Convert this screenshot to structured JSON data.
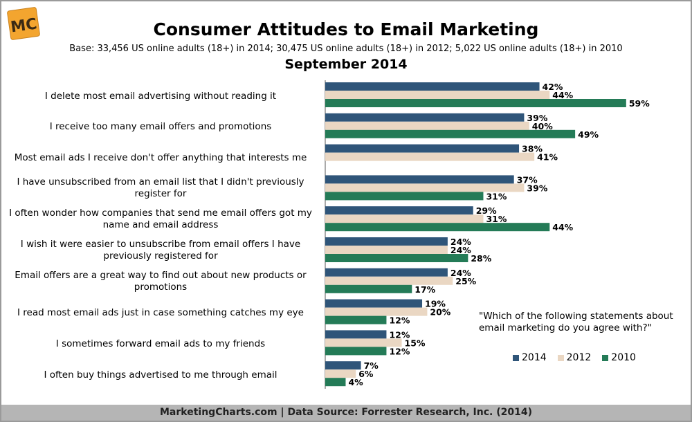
{
  "header": {
    "logo_text": "MC",
    "title": "Consumer Attitudes to Email Marketing",
    "subtitle": "Base: 33,456 US online adults (18+) in 2014; 30,475 US online adults (18+) in 2012; 5,022 US online adults (18+) in 2010",
    "period": "September 2014"
  },
  "annotation": "\"Which of the following statements about email marketing do you agree with?\"",
  "footer": "MarketingCharts.com | Data Source: Forrester Research, Inc. (2014)",
  "colors": {
    "2014": "#2f5579",
    "2012": "#ead7c3",
    "2010": "#247b57"
  },
  "chart_data": {
    "type": "bar",
    "orientation": "horizontal",
    "title": "Consumer Attitudes to Email Marketing",
    "subtitle": "September 2014",
    "categories": [
      "I delete most email advertising without reading it",
      "I receive too many email offers and promotions",
      "Most email ads I receive don't offer anything that interests me",
      "I have unsubscribed from an email list that I didn't previously register for",
      "I often wonder how companies that send me email offers got my name and email address",
      "I wish it were easier to unsubscribe from email offers I have previously registered for",
      "Email offers are a great way to find out about new products or promotions",
      "I read most email ads just in case something catches my eye",
      "I sometimes forward email ads to my friends",
      "I often buy things advertised to me through email"
    ],
    "category_lines": [
      [
        "I delete most email advertising without reading it"
      ],
      [
        "I receive too many email offers and promotions"
      ],
      [
        "Most email ads I receive don't offer anything that interests me"
      ],
      [
        "I have unsubscribed from an email list that I didn't previously",
        "register for"
      ],
      [
        "I often wonder how companies that send me email offers got my",
        "name and email address"
      ],
      [
        "I wish it were easier to unsubscribe from email offers I have",
        "previously registered for"
      ],
      [
        "Email offers are a great way to find out about new products or",
        "promotions"
      ],
      [
        "I read most email ads just in case something catches my eye"
      ],
      [
        "I sometimes forward email ads to my friends"
      ],
      [
        "I often buy things advertised to me through email"
      ]
    ],
    "series": [
      {
        "name": "2014",
        "values": [
          42,
          39,
          38,
          37,
          29,
          24,
          24,
          19,
          12,
          7
        ]
      },
      {
        "name": "2012",
        "values": [
          44,
          40,
          41,
          39,
          31,
          24,
          25,
          20,
          15,
          6
        ]
      },
      {
        "name": "2010",
        "values": [
          59,
          49,
          null,
          31,
          44,
          28,
          17,
          12,
          12,
          4
        ]
      }
    ],
    "value_suffix": "%",
    "legend_position": "bottom-right",
    "grid": false
  }
}
